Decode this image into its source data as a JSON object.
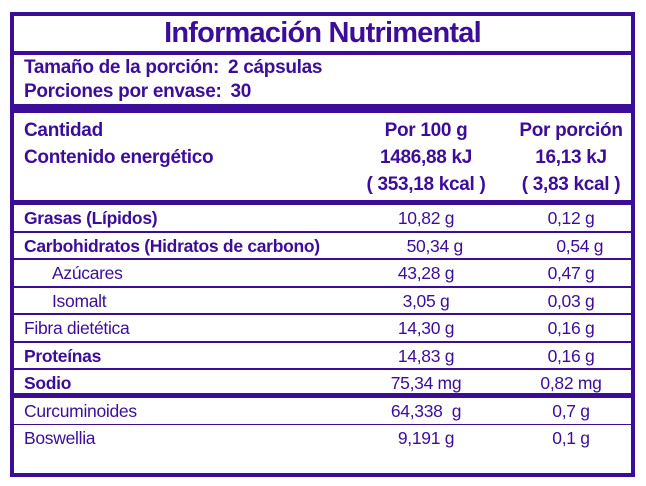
{
  "colors": {
    "accent_purple": "#3C0D99",
    "background": "#FFFFFF"
  },
  "title": "Información Nutrimental",
  "serving": {
    "size_label": "Tamaño de la porción:",
    "size_value": "2 cápsulas",
    "per_container_label": "Porciones por envase:",
    "per_container_value": "30"
  },
  "energy_header": {
    "amount_label": "Cantidad",
    "energy_label": "Contenido energético",
    "per100_label": "Por 100 g",
    "per100_kj": "1486,88 kJ",
    "per100_kcal": "( 353,18 kcal )",
    "portion_label": "Por porción",
    "portion_kj": "16,13 kJ",
    "portion_kcal": "( 3,83 kcal )"
  },
  "rows": [
    {
      "label": "Grasas (Lípidos)",
      "per100": "10,82 g",
      "per_portion": "0,12 g"
    },
    {
      "label": "Carbohidratos (Hidratos de carbono)",
      "per100": "50,34 g",
      "per_portion": "0,54 g"
    },
    {
      "label": "Azúcares",
      "per100": "43,28 g",
      "per_portion": "0,47 g"
    },
    {
      "label": "Isomalt",
      "per100": "3,05 g",
      "per_portion": "0,03 g"
    },
    {
      "label": "Fibra dietética",
      "per100": "14,30 g",
      "per_portion": "0,16 g"
    },
    {
      "label": "Proteínas",
      "per100": "14,83 g",
      "per_portion": "0,16 g"
    },
    {
      "label": "Sodio",
      "per100": "75,34 mg",
      "per_portion": "0,82 mg"
    },
    {
      "label": "Curcuminoides",
      "per100": "64,338  g",
      "per_portion": "0,7 g"
    },
    {
      "label": "Boswellia",
      "per100": "9,191 g",
      "per_portion": "0,1 g"
    }
  ]
}
